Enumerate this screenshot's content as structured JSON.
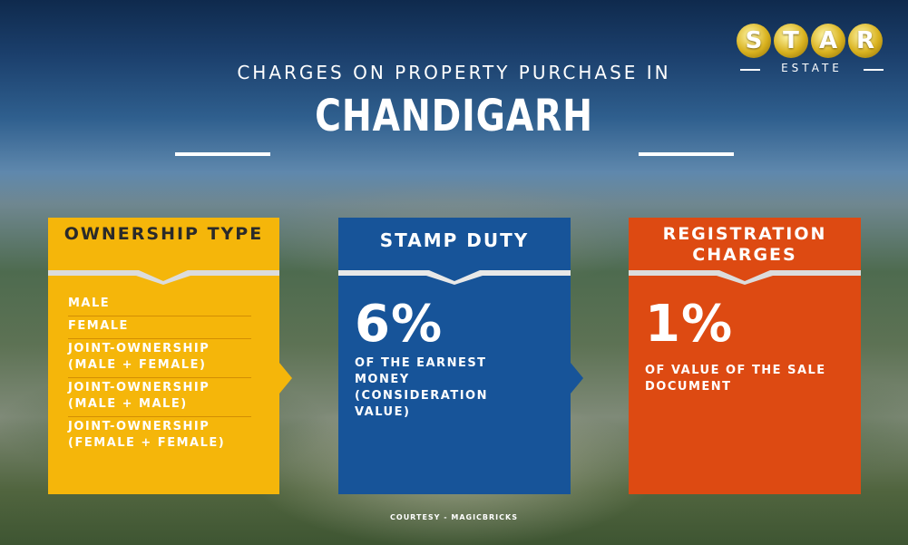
{
  "header": {
    "subtitle": "CHARGES ON PROPERTY PURCHASE IN",
    "city": "CHANDIGARH"
  },
  "logo": {
    "letters": [
      "S",
      "T",
      "A",
      "R"
    ],
    "tagline": "ESTATE"
  },
  "ownership_panel": {
    "title": "OWNERSHIP TYPE",
    "items": [
      "MALE",
      "FEMALE",
      "JOINT-OWNERSHIP (MALE + FEMALE)",
      "JOINT-OWNERSHIP (MALE + MALE)",
      "JOINT-OWNERSHIP (FEMALE + FEMALE)"
    ]
  },
  "stamp_duty_panel": {
    "title": "STAMP DUTY",
    "rate": "6%",
    "description": "OF THE EARNEST MONEY (CONSIDERATION VALUE)"
  },
  "registration_panel": {
    "title": "REGISTRATION CHARGES",
    "rate": "1%",
    "description": "OF VALUE OF THE SALE DOCUMENT"
  },
  "footer": {
    "courtesy": "COURTESY - MAGICBRICKS"
  },
  "colors": {
    "ownership": "#f5b60a",
    "stamp_duty": "#175499",
    "registration": "#dd4a12",
    "text": "#ffffff"
  }
}
